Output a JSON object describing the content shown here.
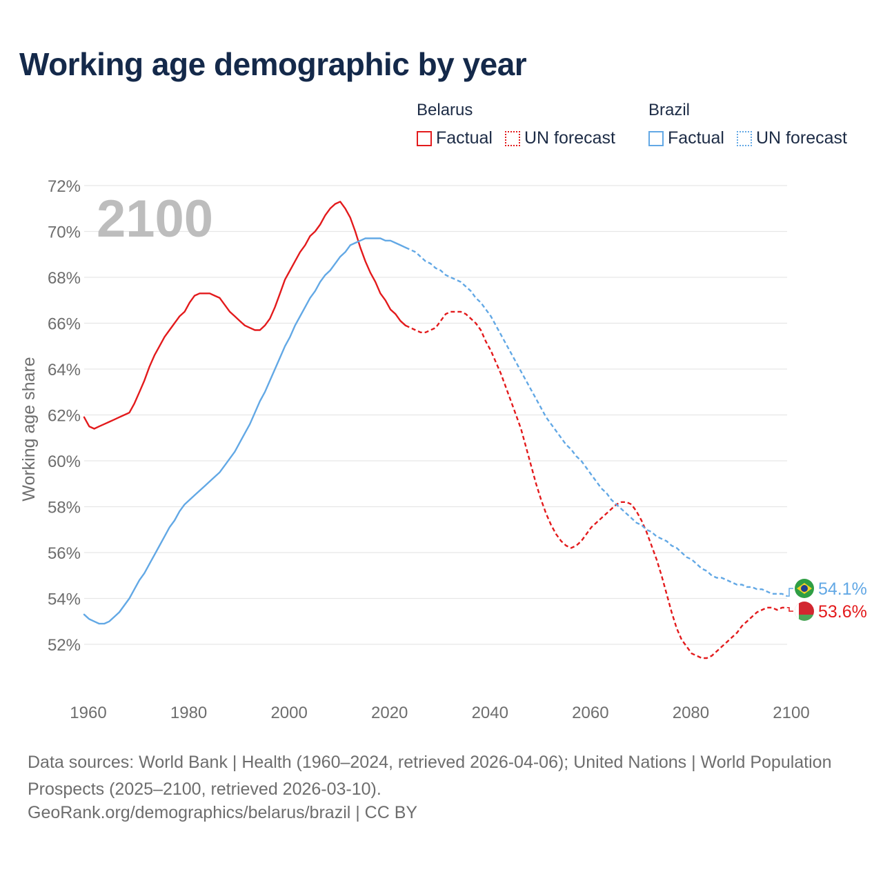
{
  "title": "Working age demographic by year",
  "legend": {
    "groups": [
      {
        "name": "Belarus",
        "color": "#e31a1c",
        "items": [
          {
            "label": "Factual",
            "style": "solid"
          },
          {
            "label": "UN forecast",
            "style": "dotted"
          }
        ]
      },
      {
        "name": "Brazil",
        "color": "#62a8e5",
        "items": [
          {
            "label": "Factual",
            "style": "solid"
          },
          {
            "label": "UN forecast",
            "style": "dotted"
          }
        ]
      }
    ]
  },
  "year_label": "2100",
  "footer": {
    "sources": "Data sources: World Bank | Health (1960–2024, retrieved 2026-04-06); United Nations | World Population Prospects (2025–2100, retrieved 2026-03-10).",
    "credit": "GeoRank.org/demographics/belarus/brazil | CC BY"
  },
  "chart_data": {
    "type": "line",
    "title": "Working age demographic by year",
    "xlabel": "",
    "ylabel": "Working age share",
    "xlim": [
      1960,
      2100
    ],
    "ylim": [
      50.5,
      72
    ],
    "x_ticks": [
      1960,
      1980,
      2000,
      2020,
      2040,
      2060,
      2080,
      2100
    ],
    "x_tick_labels": [
      "1960",
      "1980",
      "2000",
      "2020",
      "2040",
      "2060",
      "2080",
      "2100"
    ],
    "y_ticks": [
      52,
      54,
      56,
      58,
      60,
      62,
      64,
      66,
      68,
      70,
      72
    ],
    "y_tick_labels": [
      "52%",
      "54%",
      "56%",
      "58%",
      "60%",
      "62%",
      "64%",
      "66%",
      "68%",
      "70%",
      "72%"
    ],
    "grid": true,
    "forecast_start": 2024,
    "series": [
      {
        "name": "Belarus",
        "color": "#e31a1c",
        "end_label": "53.6%",
        "end_value": 53.6,
        "points": [
          [
            1960,
            61.9
          ],
          [
            1961,
            61.5
          ],
          [
            1962,
            61.4
          ],
          [
            1963,
            61.5
          ],
          [
            1964,
            61.6
          ],
          [
            1965,
            61.7
          ],
          [
            1966,
            61.8
          ],
          [
            1967,
            61.9
          ],
          [
            1968,
            62.0
          ],
          [
            1969,
            62.1
          ],
          [
            1970,
            62.5
          ],
          [
            1971,
            63.0
          ],
          [
            1972,
            63.5
          ],
          [
            1973,
            64.1
          ],
          [
            1974,
            64.6
          ],
          [
            1975,
            65.0
          ],
          [
            1976,
            65.4
          ],
          [
            1977,
            65.7
          ],
          [
            1978,
            66.0
          ],
          [
            1979,
            66.3
          ],
          [
            1980,
            66.5
          ],
          [
            1981,
            66.9
          ],
          [
            1982,
            67.2
          ],
          [
            1983,
            67.3
          ],
          [
            1984,
            67.3
          ],
          [
            1985,
            67.3
          ],
          [
            1986,
            67.2
          ],
          [
            1987,
            67.1
          ],
          [
            1988,
            66.8
          ],
          [
            1989,
            66.5
          ],
          [
            1990,
            66.3
          ],
          [
            1991,
            66.1
          ],
          [
            1992,
            65.9
          ],
          [
            1993,
            65.8
          ],
          [
            1994,
            65.7
          ],
          [
            1995,
            65.7
          ],
          [
            1996,
            65.9
          ],
          [
            1997,
            66.2
          ],
          [
            1998,
            66.7
          ],
          [
            1999,
            67.3
          ],
          [
            2000,
            67.9
          ],
          [
            2001,
            68.3
          ],
          [
            2002,
            68.7
          ],
          [
            2003,
            69.1
          ],
          [
            2004,
            69.4
          ],
          [
            2005,
            69.8
          ],
          [
            2006,
            70.0
          ],
          [
            2007,
            70.3
          ],
          [
            2008,
            70.7
          ],
          [
            2009,
            71.0
          ],
          [
            2010,
            71.2
          ],
          [
            2011,
            71.3
          ],
          [
            2012,
            71.0
          ],
          [
            2013,
            70.6
          ],
          [
            2014,
            70.0
          ],
          [
            2015,
            69.3
          ],
          [
            2016,
            68.7
          ],
          [
            2017,
            68.2
          ],
          [
            2018,
            67.8
          ],
          [
            2019,
            67.3
          ],
          [
            2020,
            67.0
          ],
          [
            2021,
            66.6
          ],
          [
            2022,
            66.4
          ],
          [
            2023,
            66.1
          ],
          [
            2024,
            65.9
          ],
          [
            2025,
            65.8
          ],
          [
            2026,
            65.7
          ],
          [
            2027,
            65.6
          ],
          [
            2028,
            65.6
          ],
          [
            2029,
            65.7
          ],
          [
            2030,
            65.8
          ],
          [
            2031,
            66.1
          ],
          [
            2032,
            66.4
          ],
          [
            2033,
            66.5
          ],
          [
            2034,
            66.5
          ],
          [
            2035,
            66.5
          ],
          [
            2036,
            66.4
          ],
          [
            2037,
            66.2
          ],
          [
            2038,
            66.0
          ],
          [
            2039,
            65.7
          ],
          [
            2040,
            65.2
          ],
          [
            2041,
            64.8
          ],
          [
            2042,
            64.3
          ],
          [
            2043,
            63.8
          ],
          [
            2044,
            63.2
          ],
          [
            2045,
            62.6
          ],
          [
            2046,
            62.0
          ],
          [
            2047,
            61.4
          ],
          [
            2048,
            60.6
          ],
          [
            2049,
            59.8
          ],
          [
            2050,
            59.0
          ],
          [
            2051,
            58.3
          ],
          [
            2052,
            57.7
          ],
          [
            2053,
            57.2
          ],
          [
            2054,
            56.8
          ],
          [
            2055,
            56.5
          ],
          [
            2056,
            56.3
          ],
          [
            2057,
            56.2
          ],
          [
            2058,
            56.3
          ],
          [
            2059,
            56.5
          ],
          [
            2060,
            56.8
          ],
          [
            2061,
            57.1
          ],
          [
            2062,
            57.3
          ],
          [
            2063,
            57.5
          ],
          [
            2064,
            57.7
          ],
          [
            2065,
            57.9
          ],
          [
            2066,
            58.1
          ],
          [
            2067,
            58.2
          ],
          [
            2068,
            58.2
          ],
          [
            2069,
            58.1
          ],
          [
            2070,
            57.8
          ],
          [
            2071,
            57.4
          ],
          [
            2072,
            56.9
          ],
          [
            2073,
            56.3
          ],
          [
            2074,
            55.7
          ],
          [
            2075,
            55.0
          ],
          [
            2076,
            54.2
          ],
          [
            2077,
            53.4
          ],
          [
            2078,
            52.7
          ],
          [
            2079,
            52.2
          ],
          [
            2080,
            51.9
          ],
          [
            2081,
            51.6
          ],
          [
            2082,
            51.5
          ],
          [
            2083,
            51.4
          ],
          [
            2084,
            51.4
          ],
          [
            2085,
            51.5
          ],
          [
            2086,
            51.7
          ],
          [
            2087,
            51.9
          ],
          [
            2088,
            52.1
          ],
          [
            2089,
            52.3
          ],
          [
            2090,
            52.5
          ],
          [
            2091,
            52.8
          ],
          [
            2092,
            53.0
          ],
          [
            2093,
            53.2
          ],
          [
            2094,
            53.4
          ],
          [
            2095,
            53.5
          ],
          [
            2096,
            53.6
          ],
          [
            2097,
            53.6
          ],
          [
            2098,
            53.5
          ],
          [
            2099,
            53.6
          ],
          [
            2100,
            53.6
          ]
        ]
      },
      {
        "name": "Brazil",
        "color": "#62a8e5",
        "end_label": "54.1%",
        "end_value": 54.1,
        "points": [
          [
            1960,
            53.3
          ],
          [
            1961,
            53.1
          ],
          [
            1962,
            53.0
          ],
          [
            1963,
            52.9
          ],
          [
            1964,
            52.9
          ],
          [
            1965,
            53.0
          ],
          [
            1966,
            53.2
          ],
          [
            1967,
            53.4
          ],
          [
            1968,
            53.7
          ],
          [
            1969,
            54.0
          ],
          [
            1970,
            54.4
          ],
          [
            1971,
            54.8
          ],
          [
            1972,
            55.1
          ],
          [
            1973,
            55.5
          ],
          [
            1974,
            55.9
          ],
          [
            1975,
            56.3
          ],
          [
            1976,
            56.7
          ],
          [
            1977,
            57.1
          ],
          [
            1978,
            57.4
          ],
          [
            1979,
            57.8
          ],
          [
            1980,
            58.1
          ],
          [
            1981,
            58.3
          ],
          [
            1982,
            58.5
          ],
          [
            1983,
            58.7
          ],
          [
            1984,
            58.9
          ],
          [
            1985,
            59.1
          ],
          [
            1986,
            59.3
          ],
          [
            1987,
            59.5
          ],
          [
            1988,
            59.8
          ],
          [
            1989,
            60.1
          ],
          [
            1990,
            60.4
          ],
          [
            1991,
            60.8
          ],
          [
            1992,
            61.2
          ],
          [
            1993,
            61.6
          ],
          [
            1994,
            62.1
          ],
          [
            1995,
            62.6
          ],
          [
            1996,
            63.0
          ],
          [
            1997,
            63.5
          ],
          [
            1998,
            64.0
          ],
          [
            1999,
            64.5
          ],
          [
            2000,
            65.0
          ],
          [
            2001,
            65.4
          ],
          [
            2002,
            65.9
          ],
          [
            2003,
            66.3
          ],
          [
            2004,
            66.7
          ],
          [
            2005,
            67.1
          ],
          [
            2006,
            67.4
          ],
          [
            2007,
            67.8
          ],
          [
            2008,
            68.1
          ],
          [
            2009,
            68.3
          ],
          [
            2010,
            68.6
          ],
          [
            2011,
            68.9
          ],
          [
            2012,
            69.1
          ],
          [
            2013,
            69.4
          ],
          [
            2014,
            69.5
          ],
          [
            2015,
            69.6
          ],
          [
            2016,
            69.7
          ],
          [
            2017,
            69.7
          ],
          [
            2018,
            69.7
          ],
          [
            2019,
            69.7
          ],
          [
            2020,
            69.6
          ],
          [
            2021,
            69.6
          ],
          [
            2022,
            69.5
          ],
          [
            2023,
            69.4
          ],
          [
            2024,
            69.3
          ],
          [
            2025,
            69.2
          ],
          [
            2026,
            69.1
          ],
          [
            2027,
            68.9
          ],
          [
            2028,
            68.7
          ],
          [
            2029,
            68.6
          ],
          [
            2030,
            68.4
          ],
          [
            2031,
            68.3
          ],
          [
            2032,
            68.1
          ],
          [
            2033,
            68.0
          ],
          [
            2034,
            67.9
          ],
          [
            2035,
            67.8
          ],
          [
            2036,
            67.6
          ],
          [
            2037,
            67.4
          ],
          [
            2038,
            67.1
          ],
          [
            2039,
            66.9
          ],
          [
            2040,
            66.6
          ],
          [
            2041,
            66.3
          ],
          [
            2042,
            65.9
          ],
          [
            2043,
            65.5
          ],
          [
            2044,
            65.1
          ],
          [
            2045,
            64.7
          ],
          [
            2046,
            64.3
          ],
          [
            2047,
            63.9
          ],
          [
            2048,
            63.5
          ],
          [
            2049,
            63.1
          ],
          [
            2050,
            62.7
          ],
          [
            2051,
            62.3
          ],
          [
            2052,
            61.9
          ],
          [
            2053,
            61.6
          ],
          [
            2054,
            61.3
          ],
          [
            2055,
            61.0
          ],
          [
            2056,
            60.7
          ],
          [
            2057,
            60.5
          ],
          [
            2058,
            60.2
          ],
          [
            2059,
            60.0
          ],
          [
            2060,
            59.7
          ],
          [
            2061,
            59.4
          ],
          [
            2062,
            59.1
          ],
          [
            2063,
            58.8
          ],
          [
            2064,
            58.6
          ],
          [
            2065,
            58.3
          ],
          [
            2066,
            58.1
          ],
          [
            2067,
            57.9
          ],
          [
            2068,
            57.7
          ],
          [
            2069,
            57.5
          ],
          [
            2070,
            57.3
          ],
          [
            2071,
            57.2
          ],
          [
            2072,
            57.0
          ],
          [
            2073,
            56.9
          ],
          [
            2074,
            56.7
          ],
          [
            2075,
            56.6
          ],
          [
            2076,
            56.5
          ],
          [
            2077,
            56.3
          ],
          [
            2078,
            56.2
          ],
          [
            2079,
            56.0
          ],
          [
            2080,
            55.8
          ],
          [
            2081,
            55.7
          ],
          [
            2082,
            55.5
          ],
          [
            2083,
            55.3
          ],
          [
            2084,
            55.2
          ],
          [
            2085,
            55.0
          ],
          [
            2086,
            54.9
          ],
          [
            2087,
            54.9
          ],
          [
            2088,
            54.8
          ],
          [
            2089,
            54.7
          ],
          [
            2090,
            54.6
          ],
          [
            2091,
            54.6
          ],
          [
            2092,
            54.5
          ],
          [
            2093,
            54.5
          ],
          [
            2094,
            54.4
          ],
          [
            2095,
            54.4
          ],
          [
            2096,
            54.3
          ],
          [
            2097,
            54.2
          ],
          [
            2098,
            54.2
          ],
          [
            2099,
            54.2
          ],
          [
            2100,
            54.1
          ]
        ]
      }
    ]
  }
}
